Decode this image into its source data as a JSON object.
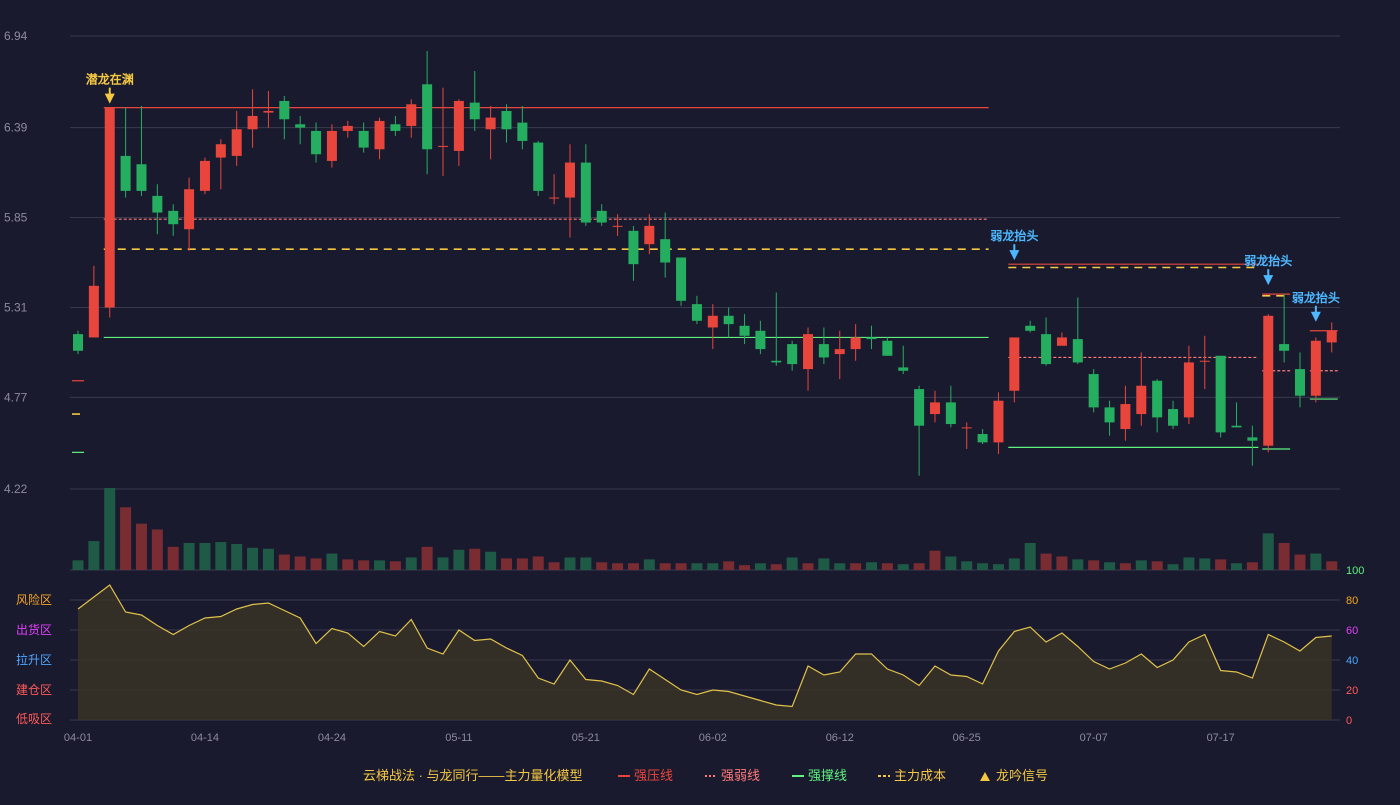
{
  "colors": {
    "background": "#1a1a2e",
    "grid": "#3a3a4e",
    "up": "#e8463c",
    "down": "#26ae60",
    "volume_up": "#7a2c33",
    "volume_down": "#1f5a46",
    "pressure_line": "#e8463c",
    "weak_line": "#ff7a7a",
    "support_line": "#5ef27e",
    "cost_line": "#f5c842",
    "risk_line": "#e0c24a",
    "tick_text": "#8c8c9c",
    "legend_text": "#f5c842"
  },
  "chart_data": {
    "type": "candlestick",
    "price_axis": {
      "ticks": [
        "6.94",
        "6.39",
        "5.85",
        "5.31",
        "4.77",
        "4.22"
      ],
      "min": 4.22,
      "max": 6.94
    },
    "x_axis": {
      "labels": [
        {
          "i": 0,
          "text": "04-01"
        },
        {
          "i": 8,
          "text": "04-14"
        },
        {
          "i": 16,
          "text": "04-24"
        },
        {
          "i": 24,
          "text": "05-11"
        },
        {
          "i": 32,
          "text": "05-21"
        },
        {
          "i": 40,
          "text": "06-02"
        },
        {
          "i": 48,
          "text": "06-12"
        },
        {
          "i": 56,
          "text": "06-25"
        },
        {
          "i": 64,
          "text": "07-07"
        },
        {
          "i": 72,
          "text": "07-17"
        }
      ]
    },
    "candles": [
      [
        5.15,
        5.05,
        5.17,
        5.03
      ],
      [
        5.13,
        5.44,
        5.56,
        5.13
      ],
      [
        5.31,
        6.51,
        6.51,
        5.25
      ],
      [
        6.22,
        6.01,
        6.51,
        5.97
      ],
      [
        6.17,
        6.01,
        6.52,
        5.98
      ],
      [
        5.98,
        5.88,
        6.05,
        5.75
      ],
      [
        5.89,
        5.81,
        5.93,
        5.74
      ],
      [
        5.78,
        6.02,
        6.09,
        5.65
      ],
      [
        6.01,
        6.19,
        6.21,
        5.99
      ],
      [
        6.21,
        6.29,
        6.32,
        6.02
      ],
      [
        6.22,
        6.38,
        6.49,
        6.16
      ],
      [
        6.38,
        6.46,
        6.62,
        6.27
      ],
      [
        6.48,
        6.49,
        6.61,
        6.39
      ],
      [
        6.55,
        6.44,
        6.58,
        6.32
      ],
      [
        6.41,
        6.39,
        6.46,
        6.29
      ],
      [
        6.37,
        6.23,
        6.42,
        6.18
      ],
      [
        6.19,
        6.37,
        6.41,
        6.15
      ],
      [
        6.37,
        6.4,
        6.43,
        6.33
      ],
      [
        6.37,
        6.27,
        6.42,
        6.24
      ],
      [
        6.26,
        6.43,
        6.45,
        6.2
      ],
      [
        6.41,
        6.37,
        6.46,
        6.34
      ],
      [
        6.4,
        6.53,
        6.56,
        6.33
      ],
      [
        6.65,
        6.26,
        6.85,
        6.11
      ],
      [
        6.28,
        6.28,
        6.63,
        6.1
      ],
      [
        6.25,
        6.55,
        6.56,
        6.16
      ],
      [
        6.54,
        6.44,
        6.73,
        6.37
      ],
      [
        6.38,
        6.45,
        6.52,
        6.2
      ],
      [
        6.49,
        6.38,
        6.53,
        6.3
      ],
      [
        6.42,
        6.31,
        6.52,
        6.26
      ],
      [
        6.3,
        6.01,
        6.31,
        5.98
      ],
      [
        5.97,
        5.97,
        6.11,
        5.93
      ],
      [
        5.97,
        6.18,
        6.29,
        5.73
      ],
      [
        6.18,
        5.82,
        6.29,
        5.8
      ],
      [
        5.89,
        5.82,
        5.93,
        5.8
      ],
      [
        5.8,
        5.8,
        5.87,
        5.74
      ],
      [
        5.77,
        5.57,
        5.8,
        5.47
      ],
      [
        5.69,
        5.8,
        5.87,
        5.63
      ],
      [
        5.72,
        5.58,
        5.88,
        5.49
      ],
      [
        5.61,
        5.35,
        5.61,
        5.32
      ],
      [
        5.33,
        5.23,
        5.38,
        5.21
      ],
      [
        5.19,
        5.26,
        5.33,
        5.06
      ],
      [
        5.26,
        5.21,
        5.31,
        5.13
      ],
      [
        5.2,
        5.14,
        5.27,
        5.09
      ],
      [
        5.17,
        5.06,
        5.23,
        5.03
      ],
      [
        4.99,
        4.98,
        5.4,
        4.96
      ],
      [
        5.09,
        4.97,
        5.11,
        4.93
      ],
      [
        4.94,
        5.15,
        5.19,
        4.81
      ],
      [
        5.09,
        5.01,
        5.19,
        4.97
      ],
      [
        5.03,
        5.06,
        5.17,
        4.88
      ],
      [
        5.06,
        5.13,
        5.21,
        4.99
      ],
      [
        5.13,
        5.12,
        5.2,
        5.06
      ],
      [
        5.11,
        5.02,
        5.13,
        5.02
      ],
      [
        4.95,
        4.93,
        5.08,
        4.91
      ],
      [
        4.82,
        4.6,
        4.84,
        4.3
      ],
      [
        4.67,
        4.74,
        4.81,
        4.62
      ],
      [
        4.74,
        4.61,
        4.84,
        4.59
      ],
      [
        4.59,
        4.59,
        4.62,
        4.46
      ],
      [
        4.55,
        4.5,
        4.58,
        4.49
      ],
      [
        4.5,
        4.75,
        4.8,
        4.43
      ],
      [
        4.81,
        5.13,
        5.13,
        4.74
      ],
      [
        5.2,
        5.17,
        5.23,
        5.16
      ],
      [
        5.15,
        4.97,
        5.25,
        4.96
      ],
      [
        5.08,
        5.13,
        5.16,
        5.09
      ],
      [
        5.12,
        4.98,
        5.37,
        4.97
      ],
      [
        4.91,
        4.71,
        4.94,
        4.68
      ],
      [
        4.71,
        4.62,
        4.75,
        4.54
      ],
      [
        4.58,
        4.73,
        4.84,
        4.51
      ],
      [
        4.67,
        4.84,
        5.04,
        4.6
      ],
      [
        4.87,
        4.65,
        4.88,
        4.56
      ],
      [
        4.7,
        4.6,
        4.75,
        4.58
      ],
      [
        4.65,
        4.98,
        5.08,
        4.61
      ],
      [
        4.99,
        4.99,
        5.14,
        4.82
      ],
      [
        5.02,
        4.56,
        5.02,
        4.53
      ],
      [
        4.6,
        4.59,
        4.74,
        4.59
      ],
      [
        4.53,
        4.51,
        4.6,
        4.36
      ],
      [
        4.48,
        5.26,
        5.27,
        4.44
      ],
      [
        5.09,
        5.05,
        5.39,
        4.98
      ],
      [
        4.94,
        4.78,
        5.04,
        4.71
      ],
      [
        4.78,
        5.11,
        5.13,
        4.74
      ],
      [
        5.1,
        5.17,
        5.22,
        5.04
      ]
    ],
    "volume": [
      [
        10,
        "d"
      ],
      [
        30,
        "d"
      ],
      [
        85,
        "d"
      ],
      [
        65,
        "u"
      ],
      [
        48,
        "u"
      ],
      [
        42,
        "u"
      ],
      [
        24,
        "u"
      ],
      [
        28,
        "d"
      ],
      [
        28,
        "d"
      ],
      [
        29,
        "d"
      ],
      [
        27,
        "d"
      ],
      [
        23,
        "d"
      ],
      [
        22,
        "d"
      ],
      [
        16,
        "u"
      ],
      [
        14,
        "u"
      ],
      [
        12,
        "u"
      ],
      [
        17,
        "d"
      ],
      [
        11,
        "u"
      ],
      [
        10,
        "u"
      ],
      [
        10,
        "d"
      ],
      [
        9,
        "u"
      ],
      [
        13,
        "d"
      ],
      [
        24,
        "u"
      ],
      [
        13,
        "d"
      ],
      [
        21,
        "d"
      ],
      [
        22,
        "u"
      ],
      [
        19,
        "d"
      ],
      [
        12,
        "u"
      ],
      [
        12,
        "u"
      ],
      [
        14,
        "u"
      ],
      [
        8,
        "u"
      ],
      [
        13,
        "d"
      ],
      [
        13,
        "d"
      ],
      [
        8,
        "u"
      ],
      [
        7,
        "u"
      ],
      [
        7,
        "u"
      ],
      [
        11,
        "d"
      ],
      [
        7,
        "u"
      ],
      [
        7,
        "u"
      ],
      [
        7,
        "d"
      ],
      [
        7,
        "d"
      ],
      [
        9,
        "u"
      ],
      [
        5,
        "u"
      ],
      [
        7,
        "d"
      ],
      [
        6,
        "u"
      ],
      [
        13,
        "d"
      ],
      [
        7,
        "u"
      ],
      [
        12,
        "d"
      ],
      [
        7,
        "d"
      ],
      [
        7,
        "u"
      ],
      [
        8,
        "d"
      ],
      [
        7,
        "u"
      ],
      [
        6,
        "d"
      ],
      [
        7,
        "u"
      ],
      [
        20,
        "u"
      ],
      [
        14,
        "d"
      ],
      [
        9,
        "d"
      ],
      [
        7,
        "d"
      ],
      [
        6,
        "d"
      ],
      [
        12,
        "d"
      ],
      [
        28,
        "d"
      ],
      [
        17,
        "u"
      ],
      [
        14,
        "u"
      ],
      [
        11,
        "d"
      ],
      [
        10,
        "u"
      ],
      [
        8,
        "d"
      ],
      [
        7,
        "u"
      ],
      [
        10,
        "d"
      ],
      [
        9,
        "u"
      ],
      [
        6,
        "d"
      ],
      [
        13,
        "d"
      ],
      [
        12,
        "d"
      ],
      [
        11,
        "u"
      ],
      [
        7,
        "d"
      ],
      [
        8,
        "u"
      ],
      [
        38,
        "d"
      ],
      [
        28,
        "u"
      ],
      [
        16,
        "u"
      ],
      [
        17,
        "d"
      ],
      [
        9,
        "u"
      ]
    ],
    "risk_indicator": {
      "ticks": [
        "100",
        "80",
        "60",
        "40",
        "20",
        "0"
      ],
      "zones": [
        "风险区",
        "出货区",
        "拉升区",
        "建仓区",
        "低吸区"
      ],
      "values": [
        74,
        82,
        90,
        72,
        70,
        63,
        57,
        63,
        68,
        69,
        74,
        77,
        78,
        73,
        68,
        51,
        61,
        58,
        49,
        59,
        56,
        67,
        48,
        44,
        60,
        53,
        54,
        48,
        43,
        28,
        24,
        40,
        27,
        26,
        23,
        17,
        34,
        27,
        20,
        17,
        20,
        19,
        16,
        13,
        10,
        9,
        36,
        30,
        32,
        44,
        44,
        34,
        30,
        23,
        36,
        30,
        29,
        24,
        46,
        59,
        62,
        52,
        58,
        49,
        39,
        34,
        38,
        44,
        35,
        40,
        52,
        57,
        33,
        32,
        28,
        57,
        52,
        46,
        55,
        56
      ],
      "min": 0,
      "max": 100
    },
    "levels": [
      {
        "type": "pressure",
        "value": 6.51,
        "from": 2,
        "to": 57
      },
      {
        "type": "weak",
        "value": 5.84,
        "from": 2,
        "to": 57
      },
      {
        "type": "cost",
        "value": 5.66,
        "from": 2,
        "to": 57
      },
      {
        "type": "support",
        "value": 5.13,
        "from": 2,
        "to": 57
      },
      {
        "type": "pressure",
        "value": 5.57,
        "from": 59,
        "to": 74
      },
      {
        "type": "cost",
        "value": 5.55,
        "from": 59,
        "to": 74
      },
      {
        "type": "weak",
        "value": 5.01,
        "from": 59,
        "to": 74
      },
      {
        "type": "support",
        "value": 4.47,
        "from": 59,
        "to": 74
      },
      {
        "type": "pressure",
        "value": 5.39,
        "from": 75,
        "to": 76
      },
      {
        "type": "cost",
        "value": 5.38,
        "from": 75,
        "to": 76
      },
      {
        "type": "weak",
        "value": 4.93,
        "from": 75,
        "to": 76
      },
      {
        "type": "support",
        "value": 4.46,
        "from": 75,
        "to": 76
      },
      {
        "type": "pressure",
        "value": 5.17,
        "from": 78,
        "to": 79
      },
      {
        "type": "weak",
        "value": 4.93,
        "from": 78,
        "to": 79
      },
      {
        "type": "support",
        "value": 4.76,
        "from": 78,
        "to": 79
      },
      {
        "type": "pressure",
        "value": 4.87,
        "from": 0,
        "to": 0
      },
      {
        "type": "cost",
        "value": 4.67,
        "from": 0,
        "to": 0
      },
      {
        "type": "support",
        "value": 4.44,
        "from": 0,
        "to": 0
      }
    ],
    "signals": [
      {
        "i": 2,
        "text": "潜龙在渊",
        "color": "#f5c842",
        "value": 6.51
      },
      {
        "i": 59,
        "text": "弱龙抬头",
        "color": "#4db8ff",
        "value": 5.57
      },
      {
        "i": 75,
        "text": "弱龙抬头",
        "color": "#4db8ff",
        "value": 5.42
      },
      {
        "i": 78,
        "text": "弱龙抬头",
        "color": "#4db8ff",
        "value": 5.2
      }
    ],
    "legend": {
      "title": "云梯战法 · 与龙同行——主力量化模型",
      "items": [
        {
          "label": "强压线",
          "kind": "pressure"
        },
        {
          "label": "强弱线",
          "kind": "weak"
        },
        {
          "label": "强撑线",
          "kind": "support"
        },
        {
          "label": "主力成本",
          "kind": "cost"
        },
        {
          "label": "龙吟信号",
          "kind": "signal"
        }
      ]
    }
  }
}
